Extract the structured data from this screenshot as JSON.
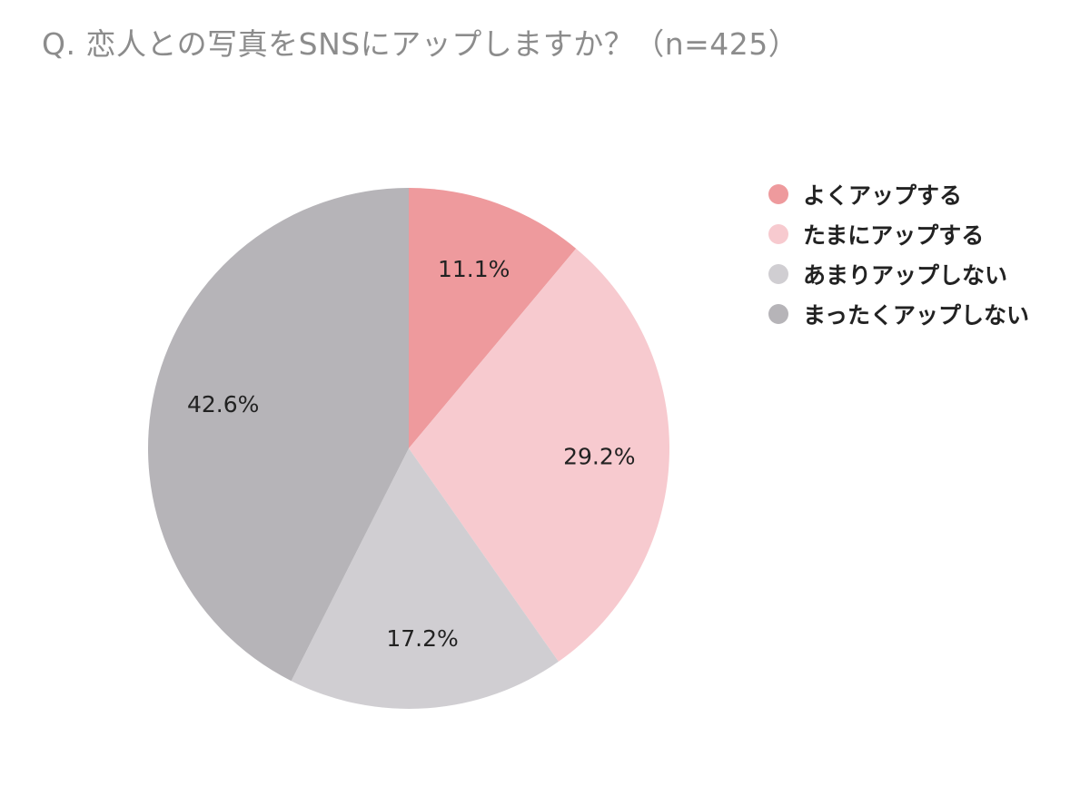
{
  "chart_data": {
    "type": "pie",
    "title": "Q. 恋人との写真をSNSにアップしますか？（n=425）",
    "legend_position": "right",
    "slices": [
      {
        "name": "よくアップする",
        "value": 11.1,
        "label": "11.1%",
        "color": "#ee9a9d"
      },
      {
        "name": "たまにアップする",
        "value": 29.2,
        "label": "29.2%",
        "color": "#f7cacf"
      },
      {
        "name": "あまりアップしない",
        "value": 17.2,
        "label": "17.2%",
        "color": "#d0ced2"
      },
      {
        "name": "まったくアップしない",
        "value": 42.6,
        "label": "42.6%",
        "color": "#b6b4b8"
      }
    ]
  }
}
